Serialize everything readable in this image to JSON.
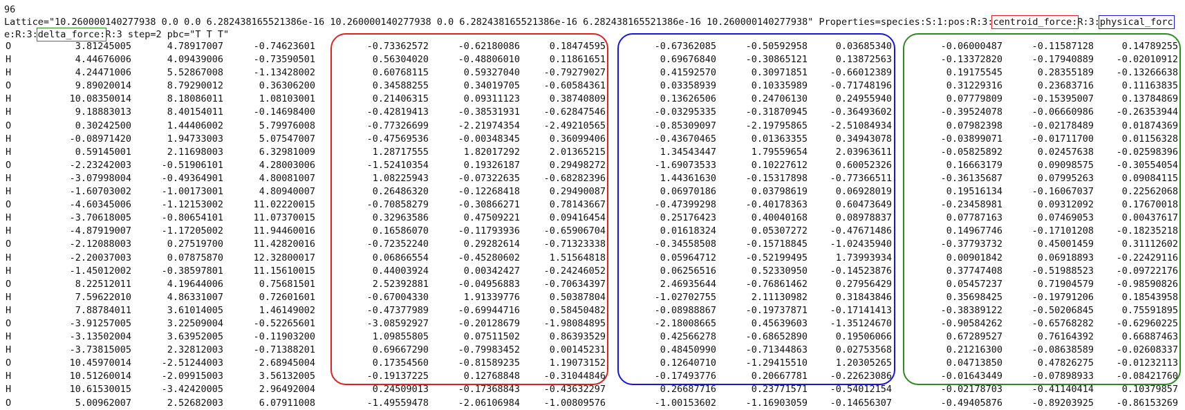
{
  "header": {
    "atom_count": "96",
    "lattice_line_1": "Lattice=\"10.260000140277938 0.0 0.0 6.282438165521386e-16 10.260000140277938 0.0 6.282438165521386e-16 6.282438165521386e-16 10.260000140277938\" Properties=species:S:1:pos:R:3:",
    "centroid_label": "centroid_force:",
    "sep_r1": "R:3:",
    "physical_label_a": "physical_forc",
    "physical_label_b": "e:R:3:",
    "delta_label": "delta_force:",
    "tail": "R:3 step=2 pbc=\"T T T\""
  },
  "colors": {
    "centroid": "#e02020",
    "physical": "#1515e0",
    "delta": "#2c8a20"
  },
  "rows": [
    [
      "O",
      "3.81245005",
      "4.78917007",
      "-0.74623601",
      "-0.73362572",
      "-0.62180086",
      "0.18474595",
      "-0.67362085",
      "-0.50592958",
      "0.03685340",
      "-0.06000487",
      "-0.11587128",
      "0.14789255"
    ],
    [
      "H",
      "4.44676006",
      "4.09439006",
      "-0.73590501",
      "0.56304020",
      "-0.48806010",
      "0.11861651",
      "0.69676840",
      "-0.30865121",
      "0.13872563",
      "-0.13372820",
      "-0.17940889",
      "-0.02010912"
    ],
    [
      "H",
      "4.24471006",
      "5.52867008",
      "-1.13428002",
      "0.60768115",
      "0.59327040",
      "-0.79279027",
      "0.41592570",
      "0.30971851",
      "-0.66012389",
      "0.19175545",
      "0.28355189",
      "-0.13266638"
    ],
    [
      "O",
      "9.89020014",
      "8.79290012",
      "0.36306200",
      "0.34588255",
      "0.34019705",
      "-0.60584361",
      "0.03358939",
      "0.10335989",
      "-0.71748196",
      "0.31229316",
      "0.23683716",
      "0.11163835"
    ],
    [
      "H",
      "10.08350014",
      "8.18086011",
      "1.08103001",
      "0.21406315",
      "0.09311123",
      "0.38740809",
      "0.13626506",
      "0.24706130",
      "0.24955940",
      "0.07779809",
      "-0.15395007",
      "0.13784869"
    ],
    [
      "H",
      "9.18883013",
      "8.40154011",
      "-0.14698400",
      "-0.42819413",
      "-0.38531931",
      "-0.62847546",
      "-0.03295335",
      "-0.31870945",
      "-0.36493602",
      "-0.39524078",
      "-0.06660986",
      "-0.26353944"
    ],
    [
      "O",
      "0.30242500",
      "1.44406002",
      "5.79976008",
      "-0.77326699",
      "-2.21974354",
      "-2.49210565",
      "-0.85309097",
      "-2.19795865",
      "-2.51084934",
      "0.07982398",
      "-0.02178489",
      "0.01874369"
    ],
    [
      "H",
      "-0.08971420",
      "1.94733003",
      "5.07547007",
      "-0.47569536",
      "-0.00348345",
      "0.36099406",
      "-0.43670465",
      "0.01363355",
      "0.34943078",
      "-0.03899071",
      "-0.01711700",
      "0.01156328"
    ],
    [
      "H",
      "0.59145001",
      "2.11698003",
      "6.32981009",
      "1.28717555",
      "1.82017292",
      "2.01365215",
      "1.34543447",
      "1.79559654",
      "2.03963611",
      "-0.05825892",
      "0.02457638",
      "-0.02598396"
    ],
    [
      "O",
      "-2.23242003",
      "-0.51906101",
      "4.28003006",
      "-1.52410354",
      "0.19326187",
      "0.29498272",
      "-1.69073533",
      "0.10227612",
      "0.60052326",
      "0.16663179",
      "0.09098575",
      "-0.30554054"
    ],
    [
      "H",
      "-3.07998004",
      "-0.49364901",
      "4.80081007",
      "1.08225943",
      "-0.07322635",
      "-0.68282396",
      "1.44361630",
      "-0.15317898",
      "-0.77366511",
      "-0.36135687",
      "0.07995263",
      "0.09084115"
    ],
    [
      "H",
      "-1.60703002",
      "-1.00173001",
      "4.80940007",
      "0.26486320",
      "-0.12268418",
      "0.29490087",
      "0.06970186",
      "0.03798619",
      "0.06928019",
      "0.19516134",
      "-0.16067037",
      "0.22562068"
    ],
    [
      "O",
      "-4.60345006",
      "-1.12153002",
      "11.02220015",
      "-0.70858279",
      "-0.30866271",
      "0.78143667",
      "-0.47399298",
      "-0.40178363",
      "0.60473649",
      "-0.23458981",
      "0.09312092",
      "0.17670018"
    ],
    [
      "H",
      "-3.70618005",
      "-0.80654101",
      "11.07370015",
      "0.32963586",
      "0.47509221",
      "0.09416454",
      "0.25176423",
      "0.40040168",
      "0.08978837",
      "0.07787163",
      "0.07469053",
      "0.00437617"
    ],
    [
      "H",
      "-4.87919007",
      "-1.17205002",
      "11.94460016",
      "0.16586070",
      "-0.11793936",
      "-0.65906704",
      "0.01618324",
      "0.05307272",
      "-0.47671486",
      "0.14967746",
      "-0.17101208",
      "-0.18235218"
    ],
    [
      "O",
      "-2.12088003",
      "0.27519700",
      "11.42820016",
      "-0.72352240",
      "0.29282614",
      "-0.71323338",
      "-0.34558508",
      "-0.15718845",
      "-1.02435940",
      "-0.37793732",
      "0.45001459",
      "0.31112602"
    ],
    [
      "H",
      "-2.20037003",
      "0.07875870",
      "12.32800017",
      "0.06866554",
      "-0.45280602",
      "1.51564818",
      "0.05964712",
      "-0.52199495",
      "1.73993934",
      "0.00901842",
      "0.06918893",
      "-0.22429116"
    ],
    [
      "H",
      "-1.45012002",
      "-0.38597801",
      "11.15610015",
      "0.44003924",
      "0.00342427",
      "-0.24246052",
      "0.06256516",
      "0.52330950",
      "-0.14523876",
      "0.37747408",
      "-0.51988523",
      "-0.09722176"
    ],
    [
      "O",
      "8.22512011",
      "4.19644006",
      "0.75681501",
      "2.52392881",
      "-0.04956883",
      "-0.70634397",
      "2.46935644",
      "-0.76861462",
      "0.27956429",
      "0.05457237",
      "0.71904579",
      "-0.98590826"
    ],
    [
      "H",
      "7.59622010",
      "4.86331007",
      "0.72601601",
      "-0.67004330",
      "1.91339776",
      "0.50387804",
      "-1.02702755",
      "2.11130982",
      "0.31843846",
      "0.35698425",
      "-0.19791206",
      "0.18543958"
    ],
    [
      "H",
      "7.88784011",
      "3.61014005",
      "1.46149002",
      "-0.47377989",
      "-0.69944716",
      "0.58450482",
      "-0.08988867",
      "-0.19737871",
      "-0.17141413",
      "-0.38389122",
      "-0.50206845",
      "0.75591895"
    ],
    [
      "O",
      "-3.91257005",
      "3.22509004",
      "-0.52265601",
      "-3.08592927",
      "-0.20128679",
      "-1.98084895",
      "-2.18008665",
      "0.45639603",
      "-1.35124670",
      "-0.90584262",
      "-0.65768282",
      "-0.62960225"
    ],
    [
      "H",
      "-3.13502004",
      "3.63952005",
      "-0.11903200",
      "1.09855805",
      "0.07511502",
      "0.86393529",
      "0.42566278",
      "-0.68652890",
      "0.19506066",
      "0.67289527",
      "0.76164392",
      "0.66887463"
    ],
    [
      "H",
      "-3.73815005",
      "2.32812003",
      "-0.71388201",
      "0.69667290",
      "-0.79983452",
      "0.00145231",
      "0.48450990",
      "-0.71344863",
      "0.02753568",
      "0.21216300",
      "-0.08638589",
      "-0.02608337"
    ],
    [
      "O",
      "10.45970014",
      "-2.51244003",
      "2.68945004",
      "0.17354560",
      "-0.81589235",
      "1.19073152",
      "0.12640710",
      "-1.29415510",
      "1.20305265",
      "0.04713850",
      "0.47826275",
      "-0.01232113"
    ],
    [
      "H",
      "10.51260014",
      "-2.09915003",
      "3.56132005",
      "-0.19137225",
      "0.12768848",
      "-0.31044846",
      "-0.17493776",
      "0.20667781",
      "-0.22623086",
      "-0.01643449",
      "-0.07898933",
      "-0.08421760"
    ],
    [
      "H",
      "10.61530015",
      "-3.42420005",
      "2.96492004",
      "0.24509013",
      "-0.17368843",
      "-0.43632297",
      "0.26687716",
      "0.23771571",
      "-0.54012154",
      "-0.02178703",
      "-0.41140414",
      "0.10379857"
    ],
    [
      "O",
      "5.00962007",
      "2.52682003",
      "6.07911008",
      "-1.49559478",
      "-2.06106984",
      "-1.00809576",
      "-1.00153602",
      "-1.16903059",
      "-0.14656307",
      "-0.49405876",
      "-0.89203925",
      "-0.86153269"
    ]
  ]
}
